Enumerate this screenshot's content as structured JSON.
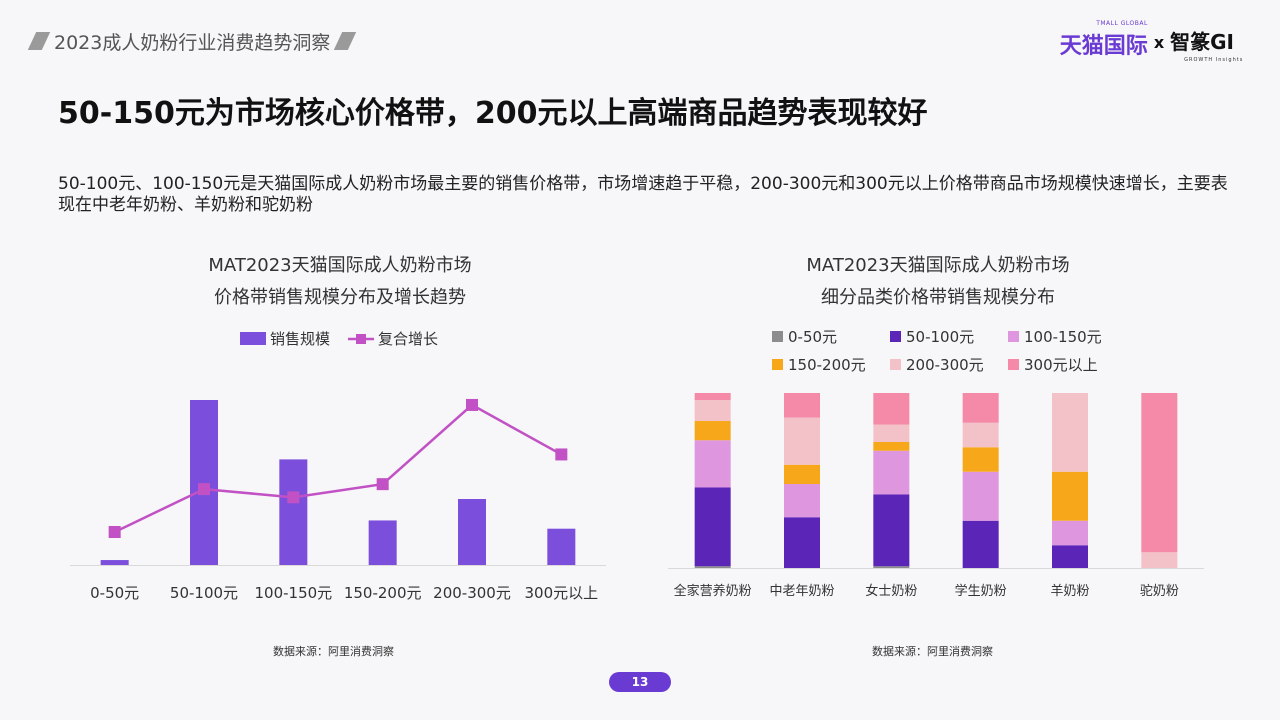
{
  "header": {
    "title": "2023成人奶粉行业消费趋势洞察",
    "brand_tmall": "天猫国际",
    "brand_tmall_small": "TMALL GLOBAL",
    "brand_x": "x",
    "brand_gi": "智篆GI",
    "brand_gi_small": "GROWTH Insights"
  },
  "main_title": "50-150元为市场核心价格带，200元以上高端商品趋势表现较好",
  "subtitle": "50-100元、100-150元是天猫国际成人奶粉市场最主要的销售价格带，市场增速趋于平稳，200-300元和300元以上价格带商品市场规模快速增长，主要表现在中老年奶粉、羊奶粉和驼奶粉",
  "page_number": "13",
  "chart_data": [
    {
      "type": "bar",
      "title": "MAT2023天猫国际成人奶粉市场",
      "subtitle": "价格带销售规模分布及增长趋势",
      "source": "数据来源：阿里消费洞察",
      "legend_position": "top",
      "categories": [
        "0-50元",
        "50-100元",
        "100-150元",
        "150-200元",
        "200-300元",
        "300元以上"
      ],
      "series": [
        {
          "name": "销售规模",
          "type": "bar",
          "color": "#7b4fdc",
          "values": [
            3,
            100,
            64,
            27,
            40,
            22
          ]
        },
        {
          "name": "复合增长",
          "type": "line",
          "color": "#c151c4",
          "values": [
            20,
            46,
            41,
            49,
            97,
            67
          ]
        }
      ],
      "ylim": [
        0,
        100
      ],
      "grid": false
    },
    {
      "type": "stacked_bar",
      "title": "MAT2023天猫国际成人奶粉市场",
      "subtitle": "细分品类价格带销售规模分布",
      "source": "数据来源：阿里消费洞察",
      "legend_position": "top",
      "categories": [
        "全家营养奶粉",
        "中老年奶粉",
        "女士奶粉",
        "学生奶粉",
        "羊奶粉",
        "驼奶粉"
      ],
      "series": [
        {
          "name": "0-50元",
          "color": "#8c8c8c",
          "values": [
            1,
            0,
            1,
            0,
            0,
            0
          ]
        },
        {
          "name": "50-100元",
          "color": "#5b25b8",
          "values": [
            45,
            29,
            41,
            27,
            13,
            0
          ]
        },
        {
          "name": "100-150元",
          "color": "#de97de",
          "values": [
            27,
            19,
            25,
            28,
            14,
            0
          ]
        },
        {
          "name": "150-200元",
          "color": "#f6a81a",
          "values": [
            11,
            11,
            5,
            14,
            28,
            0
          ]
        },
        {
          "name": "200-300元",
          "color": "#f3c2c8",
          "values": [
            12,
            27,
            10,
            14,
            45,
            9
          ]
        },
        {
          "name": "300元以上",
          "color": "#f489a8",
          "values": [
            4,
            14,
            18,
            17,
            0,
            91
          ]
        }
      ],
      "ylim": [
        0,
        100
      ],
      "grid": false
    }
  ]
}
